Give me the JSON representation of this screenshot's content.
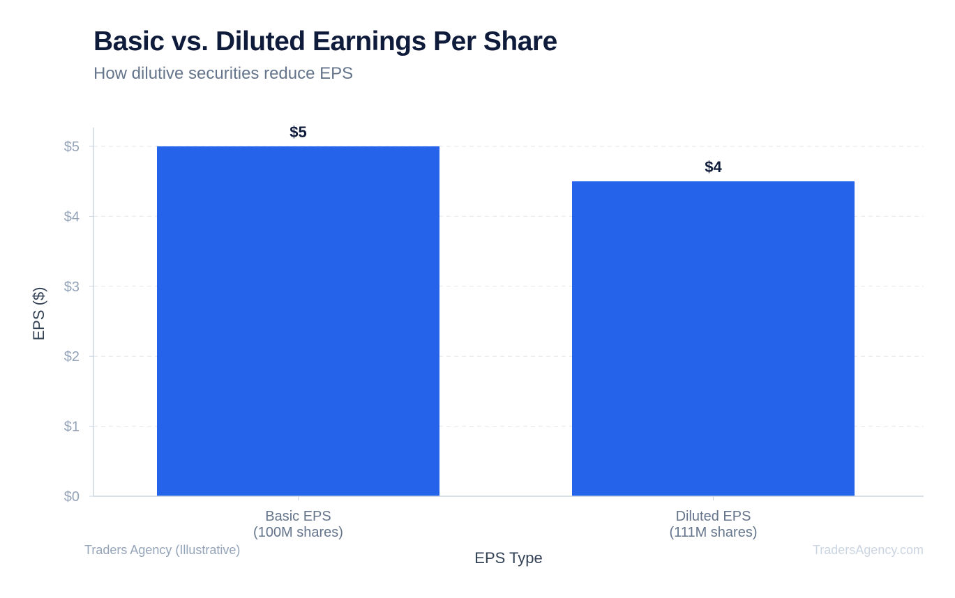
{
  "chart_data": {
    "type": "bar",
    "title": "Basic vs. Diluted Earnings Per Share",
    "subtitle": "How dilutive securities reduce EPS",
    "categories": [
      [
        "Basic EPS",
        "(100M shares)"
      ],
      [
        "Diluted EPS",
        "(111M shares)"
      ]
    ],
    "values": [
      5.0,
      4.5
    ],
    "data_labels": [
      "$5",
      "$4"
    ],
    "xlabel": "EPS Type",
    "ylabel": "EPS ($)",
    "ylim": [
      0,
      5
    ],
    "yticks": [
      0,
      1,
      2,
      3,
      4,
      5
    ],
    "ytick_labels": [
      "$0",
      "$1",
      "$2",
      "$3",
      "$4",
      "$5"
    ],
    "grid": true,
    "legend": "none",
    "bar_color": "#2563eb"
  },
  "footer": {
    "source": "Traders Agency (Illustrative)",
    "watermark": "TradersAgency.com"
  }
}
